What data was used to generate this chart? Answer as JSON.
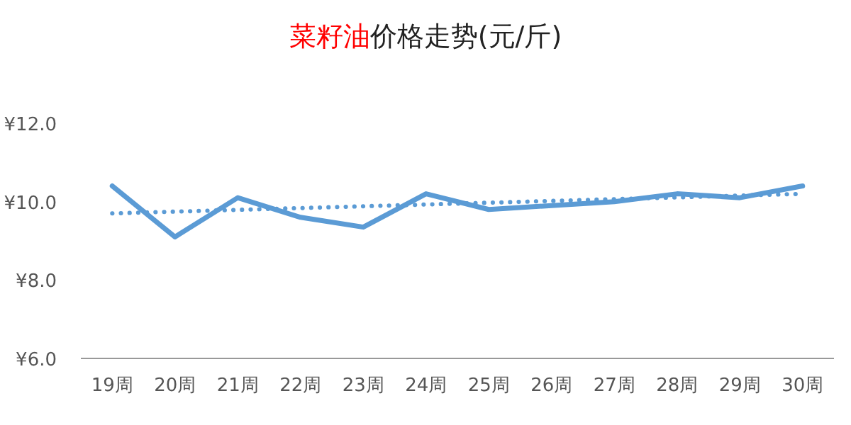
{
  "chart_data": {
    "type": "line",
    "title": "菜籽油价格走势(元/斤)",
    "categories": [
      "19周",
      "20周",
      "21周",
      "22周",
      "23周",
      "24周",
      "25周",
      "26周",
      "27周",
      "28周",
      "29周",
      "30周"
    ],
    "series": [
      {
        "color": "#5b9bd5",
        "values": [
          10.4,
          9.1,
          10.1,
          9.6,
          9.35,
          10.2,
          9.8,
          9.9,
          10.0,
          10.2,
          10.1,
          10.4
        ],
        "line_style": "solid"
      },
      {
        "color": "#5b9bd5",
        "x": [
          "19周",
          "30周"
        ],
        "values": [
          9.7,
          10.2
        ],
        "line_style": "dotted"
      }
    ],
    "ylim": [
      6,
      12
    ],
    "yticks": [
      {
        "value": 6,
        "label": "¥6.0"
      },
      {
        "value": 8,
        "label": "¥8.0"
      },
      {
        "value": 10,
        "label": "¥10.0"
      },
      {
        "value": 12,
        "label": "¥12.0"
      }
    ],
    "grid": false,
    "marker": "none"
  }
}
